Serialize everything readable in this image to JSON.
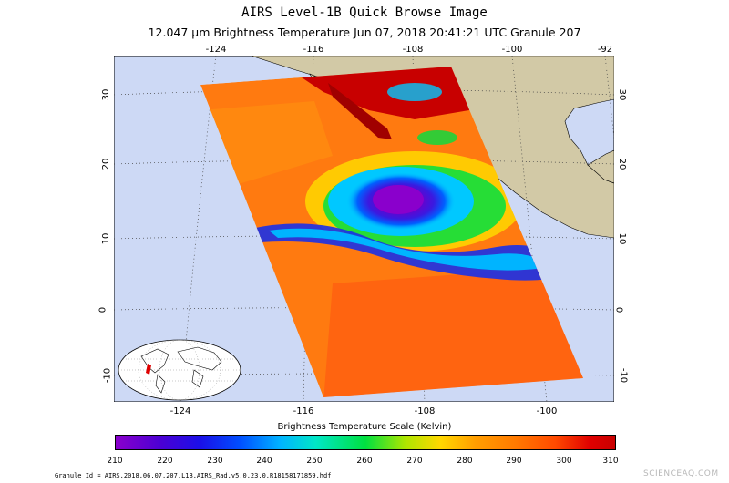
{
  "title": "AIRS Level-1B Quick Browse Image",
  "subtitle": "12.047 μm Brightness Temperature   Jun 07, 2018 20:41:21 UTC   Granule 207",
  "top_lon_ticks": [
    "-124",
    "-116",
    "-108",
    "-100",
    "-92"
  ],
  "bottom_lon_ticks": [
    "-124",
    "-116",
    "-108",
    "-100"
  ],
  "left_lat_ticks": [
    "30",
    "20",
    "10",
    "0",
    "-10"
  ],
  "right_lat_ticks": [
    "30",
    "20",
    "10",
    "0",
    "-10"
  ],
  "scale": {
    "label": "Brightness Temperature Scale (Kelvin)",
    "ticks": [
      "210",
      "220",
      "230",
      "240",
      "250",
      "260",
      "270",
      "280",
      "290",
      "300",
      "310"
    ]
  },
  "granule_id": "Granule Id = AIRS.2018.06.07.207.L1B.AIRS_Rad.v5.0.23.0.R18158171859.hdf",
  "watermark": "SCIENCEAQ.COM",
  "colors": {
    "ocean": "#cdd9f5",
    "land": "#d2c9a6"
  }
}
